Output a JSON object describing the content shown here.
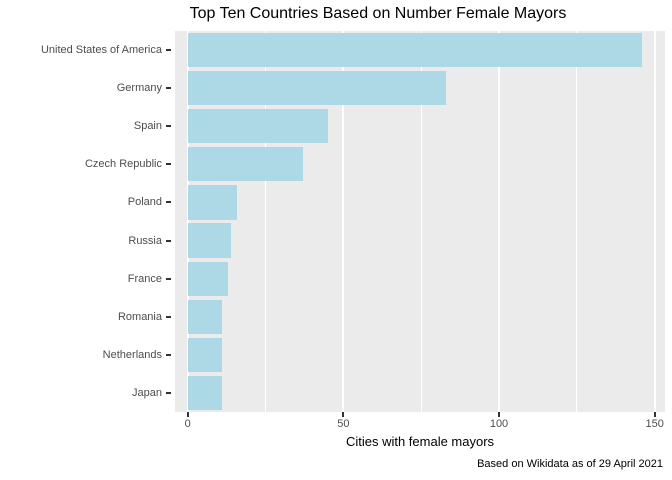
{
  "title": "Top Ten Countries Based on Number Female Mayors",
  "caption": "Based on Wikidata as of 29 April 2021",
  "chart_data": {
    "type": "bar",
    "orientation": "horizontal",
    "title": "Top Ten Countries Based on Number Female Mayors",
    "xlabel": "Cities with female mayors",
    "ylabel": "",
    "categories": [
      "United States of America",
      "Germany",
      "Spain",
      "Czech Republic",
      "Poland",
      "Russia",
      "France",
      "Romania",
      "Netherlands",
      "Japan"
    ],
    "values": [
      146,
      83,
      45,
      37,
      16,
      14,
      13,
      11,
      11,
      11
    ],
    "x_ticks": [
      0,
      50,
      100,
      150
    ],
    "x_minor_ticks": [
      25,
      75,
      125
    ],
    "xlim": [
      -4,
      153
    ],
    "grid": "white gridlines on gray panel, no legend",
    "legend": "none",
    "caption": "Based on Wikidata as of 29 April 2021",
    "colors": {
      "bar_fill": "#ADD8E6",
      "panel_background": "#EBEBEB",
      "gridline": "#FFFFFF",
      "axis_text": "#4D4D4D",
      "tick_mark": "#333333",
      "title_text": "#000000"
    }
  }
}
